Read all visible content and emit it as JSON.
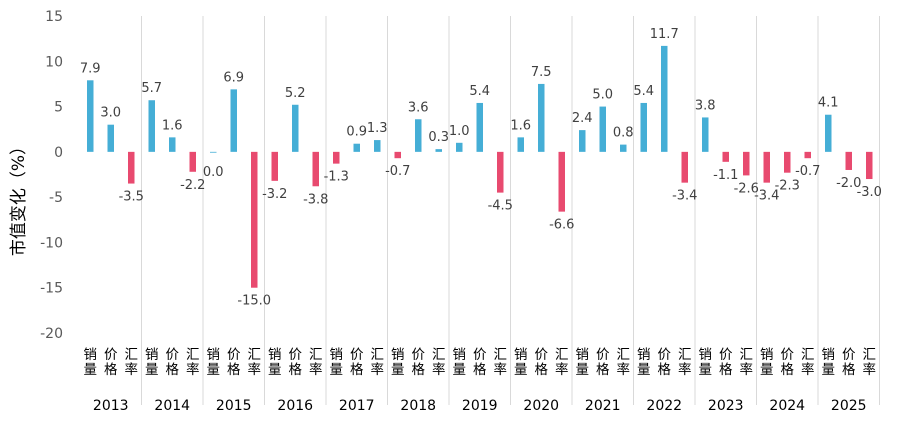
{
  "chart_data": {
    "type": "bar",
    "ylabel": "市值变化（%）",
    "ylim": [
      -20,
      15
    ],
    "yticks": [
      15,
      10,
      5,
      0,
      -5,
      -10,
      -15,
      -20
    ],
    "grid": "vertical",
    "years": [
      "2013",
      "2014",
      "2015",
      "2016",
      "2017",
      "2018",
      "2019",
      "2020",
      "2021",
      "2022",
      "2023",
      "2024",
      "2025"
    ],
    "subcategories": [
      "销量",
      "价格",
      "汇率"
    ],
    "values": [
      [
        7.9,
        3.0,
        -3.5
      ],
      [
        5.7,
        1.6,
        -2.2
      ],
      [
        0.0,
        6.9,
        -15.0
      ],
      [
        -3.2,
        5.2,
        -3.8
      ],
      [
        -1.3,
        0.9,
        1.3
      ],
      [
        -0.7,
        3.6,
        0.3
      ],
      [
        1.0,
        5.4,
        -4.5
      ],
      [
        1.6,
        7.5,
        -6.6
      ],
      [
        2.4,
        5.0,
        0.8
      ],
      [
        5.4,
        11.7,
        -3.4
      ],
      [
        3.8,
        -1.1,
        -2.6
      ],
      [
        -3.4,
        -2.3,
        -0.7
      ],
      [
        4.1,
        -2.0,
        -3.0
      ]
    ],
    "value_labels": [
      [
        "7.9",
        "3.0",
        "-3.5"
      ],
      [
        "5.7",
        "1.6",
        "-2.2"
      ],
      [
        "0.0",
        "6.9",
        "-15.0"
      ],
      [
        "-3.2",
        "5.2",
        "-3.8"
      ],
      [
        "-1.3",
        "0.9",
        "1.3"
      ],
      [
        "-0.7",
        "3.6",
        "0.3"
      ],
      [
        "1.0",
        "5.4",
        "-4.5"
      ],
      [
        "1.6",
        "7.5",
        "-6.6"
      ],
      [
        "2.4",
        "5.0",
        "0.8"
      ],
      [
        "5.4",
        "11.7",
        "-3.4"
      ],
      [
        "3.8",
        "-1.1",
        "-2.6"
      ],
      [
        "-3.4",
        "-2.3",
        "-0.7"
      ],
      [
        "4.1",
        "-2.0",
        "-3.0"
      ]
    ],
    "colors": {
      "positive": "#45AED6",
      "negative": "#E84A6F",
      "grid": "#D9D9D9"
    }
  }
}
